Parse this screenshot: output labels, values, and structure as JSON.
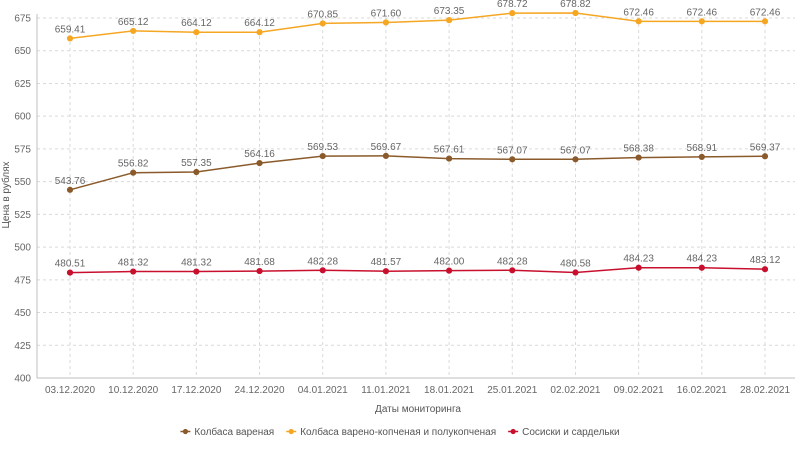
{
  "chart_data": {
    "type": "line",
    "title": "",
    "xlabel": "Даты мониторинга",
    "ylabel": "Цена в рублях",
    "ylim": [
      400,
      675
    ],
    "yticks": [
      400,
      425,
      450,
      475,
      500,
      525,
      550,
      575,
      600,
      625,
      650,
      675
    ],
    "grid": true,
    "legend_position": "bottom",
    "categories": [
      "03.12.2020",
      "10.12.2020",
      "17.12.2020",
      "24.12.2020",
      "04.01.2021",
      "11.01.2021",
      "18.01.2021",
      "25.01.2021",
      "02.02.2021",
      "09.02.2021",
      "16.02.2021",
      "28.02.2021"
    ],
    "series": [
      {
        "name": "Колбаса вареная",
        "color": "#8b5a2b",
        "values": [
          543.76,
          556.82,
          557.35,
          564.16,
          569.53,
          569.67,
          567.61,
          567.07,
          567.07,
          568.38,
          568.91,
          569.37
        ],
        "labels": [
          "543.76",
          "556.82",
          "557.35",
          "564.16",
          "569.53",
          "569.67",
          "567.61",
          "567.07",
          "567.07",
          "568.38",
          "568.91",
          "569.37"
        ]
      },
      {
        "name": "Колбаса варено-копченая и полукопченая",
        "color": "#f5a623",
        "values": [
          659.41,
          665.12,
          664.12,
          664.12,
          670.85,
          671.6,
          673.35,
          678.72,
          678.82,
          672.46,
          672.46,
          672.46
        ],
        "labels": [
          "659.41",
          "665.12",
          "664.12",
          "664.12",
          "670.85",
          "671.60",
          "673.35",
          "678.72",
          "678.82",
          "672.46",
          "672.46",
          "672.46"
        ]
      },
      {
        "name": "Сосиски и сардельки",
        "color": "#c8102e",
        "values": [
          480.51,
          481.32,
          481.32,
          481.68,
          482.28,
          481.57,
          482.0,
          482.28,
          480.58,
          484.23,
          484.23,
          483.12
        ],
        "labels": [
          "480.51",
          "481.32",
          "481.32",
          "481.68",
          "482.28",
          "481.57",
          "482.00",
          "482.28",
          "480.58",
          "484.23",
          "484.23",
          "483.12"
        ]
      }
    ]
  }
}
